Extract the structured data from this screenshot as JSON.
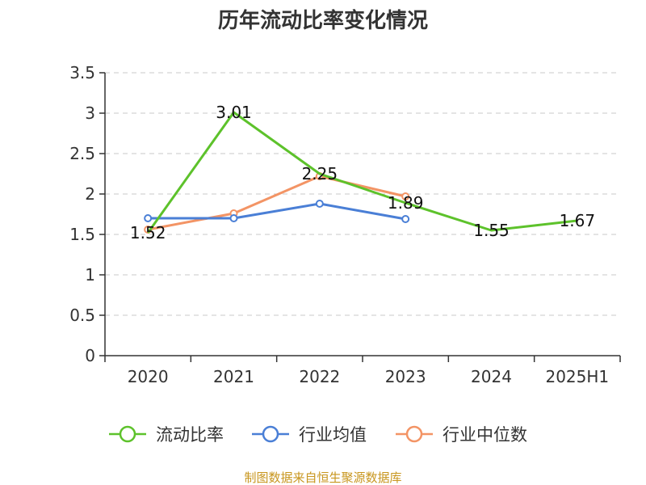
{
  "title": "历年流动比率变化情况",
  "source": "制图数据来自恒生聚源数据库",
  "chart_data": {
    "type": "line",
    "title": "历年流动比率变化情况",
    "categories": [
      "2020",
      "2021",
      "2022",
      "2023",
      "2024",
      "2025H1"
    ],
    "ylim": [
      0,
      3.5
    ],
    "yticks": [
      "0",
      "0.5",
      "1",
      "1.5",
      "2",
      "2.5",
      "3",
      "3.5"
    ],
    "grid": true,
    "legend_position": "bottom",
    "series": [
      {
        "name": "流动比率",
        "color": "#5dc22b",
        "values": [
          1.52,
          3.01,
          2.25,
          1.89,
          1.55,
          1.67
        ],
        "labels": [
          "1.52",
          "3.01",
          "2.25",
          "1.89",
          "1.55",
          "1.67"
        ]
      },
      {
        "name": "行业均值",
        "color": "#4a7fd6",
        "values": [
          1.7,
          1.7,
          1.88,
          1.69,
          null,
          null
        ]
      },
      {
        "name": "行业中位数",
        "color": "#f39465",
        "values": [
          1.56,
          1.76,
          2.22,
          1.97,
          null,
          null
        ]
      }
    ]
  }
}
